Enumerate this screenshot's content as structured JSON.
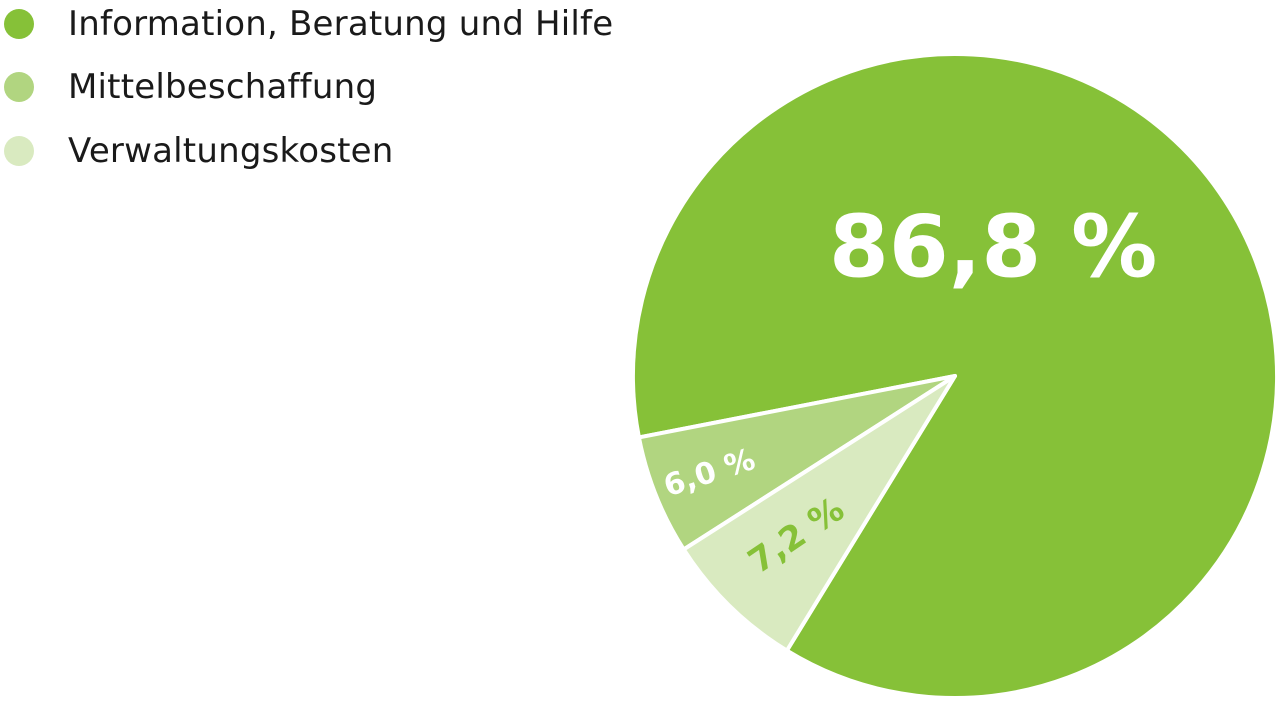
{
  "chart_data": {
    "type": "pie",
    "slices": [
      {
        "name": "Information, Beratung und Hilfe",
        "value": 86.8,
        "label": "86,8 %",
        "color": "#86c138",
        "label_color": "#ffffff"
      },
      {
        "name": "Mittelbeschaffung",
        "value": 6.0,
        "label": "6,0 %",
        "color": "#b1d580",
        "label_color": "#ffffff"
      },
      {
        "name": "Verwaltungskosten",
        "value": 7.2,
        "label": "7,2 %",
        "color": "#d9eac0",
        "label_color": "#86c138"
      }
    ],
    "legend_position": "top-left",
    "slice_separator_color": "#ffffff"
  }
}
